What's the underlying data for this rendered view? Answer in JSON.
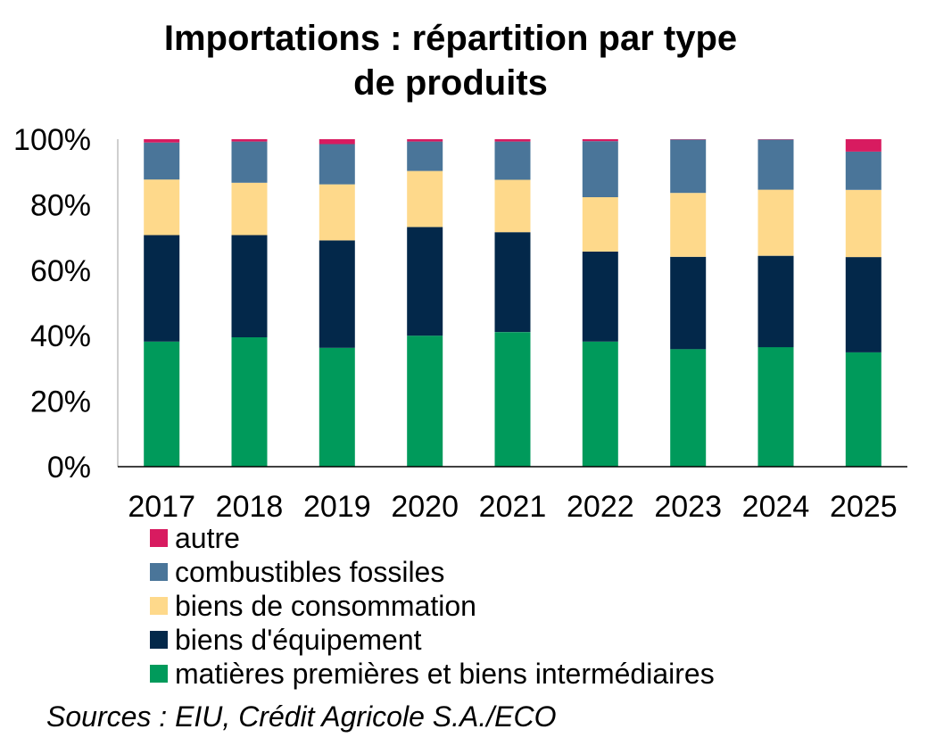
{
  "chart_data": {
    "type": "bar",
    "stacked": true,
    "title": "Importations : répartition par type de produits",
    "title_lines": [
      "Importations : répartition par type",
      "de produits"
    ],
    "categories": [
      "2017",
      "2018",
      "2019",
      "2020",
      "2021",
      "2022",
      "2023",
      "2024",
      "2025"
    ],
    "y_ticks": [
      "0%",
      "20%",
      "40%",
      "60%",
      "80%",
      "100%"
    ],
    "ylim": [
      0,
      100
    ],
    "unit": "%",
    "grid": false,
    "legend_position": "bottom",
    "series": [
      {
        "name": "matières premières et biens intermédiaires",
        "color": "#009a5b",
        "values": [
          38.2,
          39.5,
          36.3,
          40.0,
          41.1,
          38.2,
          35.9,
          36.5,
          34.9
        ]
      },
      {
        "name": "biens d'équipement",
        "color": "#03284a",
        "values": [
          32.5,
          31.2,
          32.8,
          33.2,
          30.5,
          27.5,
          28.2,
          27.9,
          29.1
        ]
      },
      {
        "name": "biens de consommation",
        "color": "#fed98b",
        "values": [
          17.0,
          16.0,
          17.1,
          17.1,
          16.0,
          16.6,
          19.5,
          20.2,
          20.5
        ]
      },
      {
        "name": "combustibles fossiles",
        "color": "#4a7599",
        "values": [
          11.3,
          12.6,
          12.3,
          9.0,
          11.7,
          17.1,
          16.3,
          15.3,
          11.7
        ]
      },
      {
        "name": "autre",
        "color": "#d81b60",
        "values": [
          1.0,
          0.7,
          1.5,
          0.7,
          0.7,
          0.6,
          0.1,
          0.1,
          3.8
        ]
      }
    ]
  },
  "source": "Sources : EIU, Crédit Agricole S.A./ECO"
}
